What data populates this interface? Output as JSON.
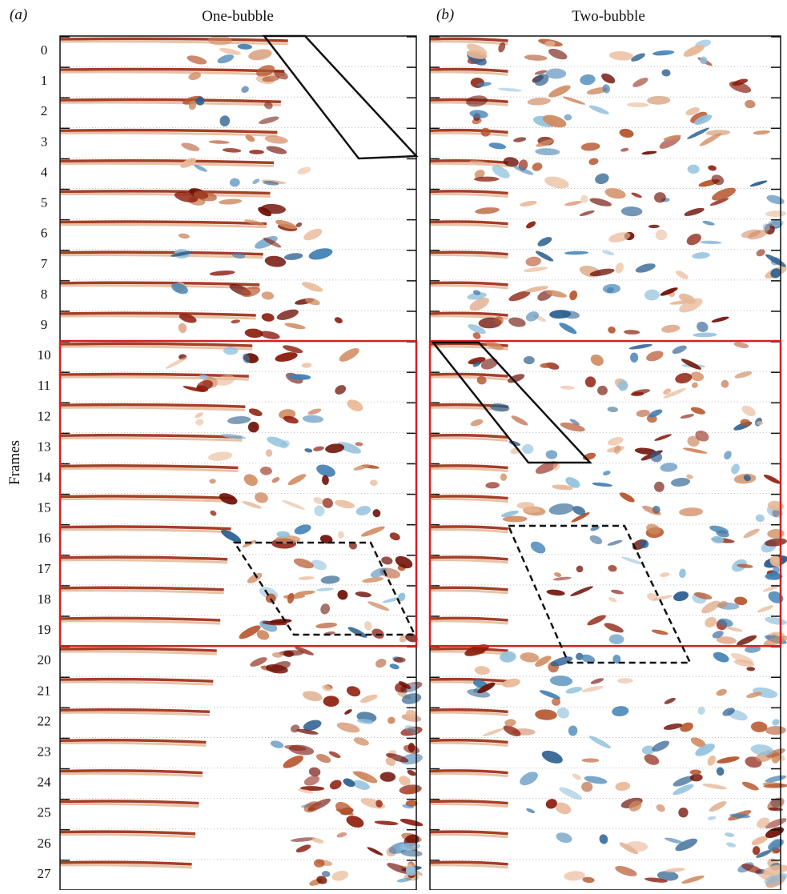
{
  "panels": [
    {
      "label": "(a)",
      "title": "One-bubble"
    },
    {
      "label": "(b)",
      "title": "Two-bubble"
    }
  ],
  "y_label": "Frames",
  "frames": [
    0,
    1,
    2,
    3,
    4,
    5,
    6,
    7,
    8,
    9,
    10,
    11,
    12,
    13,
    14,
    15,
    16,
    17,
    18,
    19,
    20,
    21,
    22,
    23,
    24,
    25,
    26,
    27
  ]
}
